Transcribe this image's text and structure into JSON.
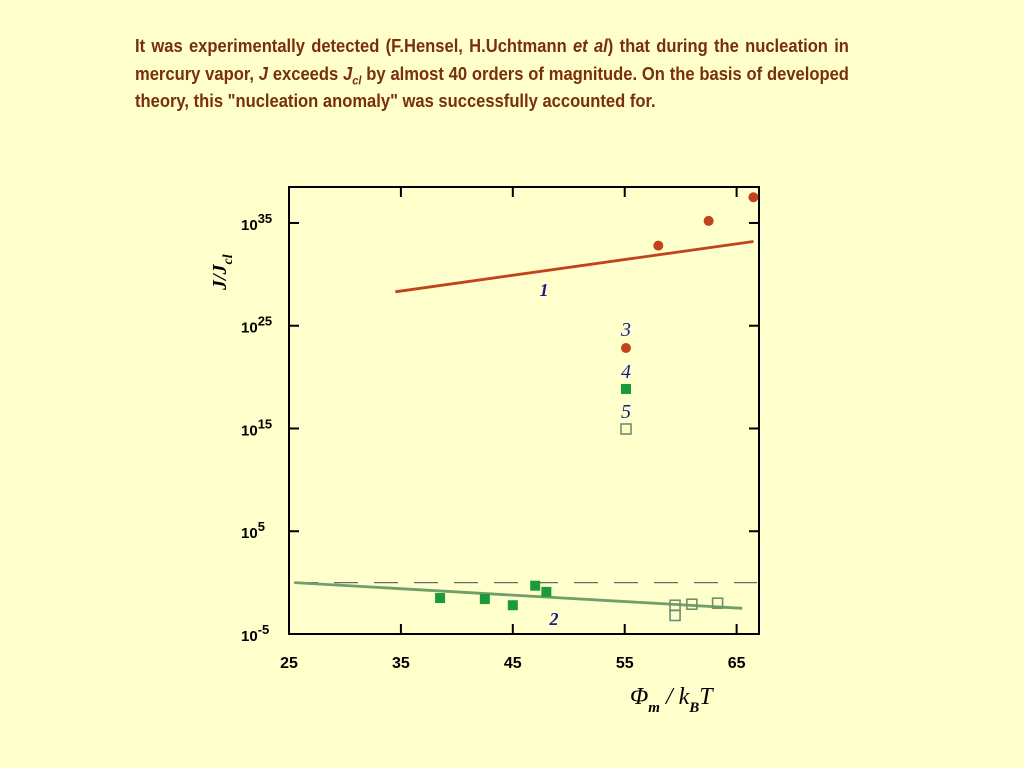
{
  "caption": {
    "part1": "It was experimentally detected (F.Hensel, H.Uchtmann ",
    "etal": "et al",
    "part2": ") that during the nucleation in mercury vapor, ",
    "J": "J",
    "part3": " exceeds ",
    "Jcl_J": "J",
    "Jcl_sub": "cl",
    "part4": " by almost 40 orders of magnitude. On the basis of developed theory, this \"nucleation anomaly\" was successfully accounted for."
  },
  "colors": {
    "background": "#ffffcc",
    "caption_text": "#7a2f0c",
    "line1": "#c0431c",
    "line2": "#6fa068",
    "dashed": "#6a6a6a",
    "mercury_points": "#c0431c",
    "green_filled": "#1a9a3a",
    "open_squares": "#6f8f6f",
    "label_blue": "#1a1a8c"
  },
  "chart_data": {
    "type": "scatter",
    "y_scale": "log",
    "xlabel": "Φ_m / k_B T",
    "ylabel": "J/J_cl",
    "xlim": [
      25,
      67
    ],
    "ylim_exp": [
      -5,
      38.5
    ],
    "x_ticks": [
      25,
      35,
      45,
      55,
      65
    ],
    "y_ticks": [
      {
        "exp": 35,
        "base": "10",
        "sup": "35"
      },
      {
        "exp": 25,
        "base": "10",
        "sup": "25"
      },
      {
        "exp": 15,
        "base": "10",
        "sup": "15"
      },
      {
        "exp": 5,
        "base": "10",
        "sup": "5"
      },
      {
        "exp": -5,
        "base": "10",
        "sup": "-5"
      }
    ],
    "grid": false,
    "lines": [
      {
        "label": "1",
        "x": [
          34.5,
          66.5
        ],
        "log10_y": [
          28.3,
          33.2
        ]
      },
      {
        "label": "2",
        "x": [
          25.5,
          65.5
        ],
        "log10_y": [
          0.0,
          -2.5
        ]
      }
    ],
    "reference_line": {
      "style": "dashed",
      "log10_y": 0.0
    },
    "series": [
      {
        "label": "3",
        "marker": "filled-circle",
        "points": [
          [
            58,
            32.8
          ],
          [
            62.5,
            35.2
          ],
          [
            66.5,
            37.5
          ]
        ]
      },
      {
        "label": "4",
        "marker": "filled-square",
        "points": [
          [
            38.5,
            -1.5
          ],
          [
            42.5,
            -1.6
          ],
          [
            45,
            -2.2
          ],
          [
            47,
            -0.3
          ],
          [
            48,
            -0.9
          ]
        ]
      },
      {
        "label": "5",
        "marker": "open-square",
        "points": [
          [
            59.5,
            -3.2
          ],
          [
            59.5,
            -2.2
          ],
          [
            61,
            -2.1
          ],
          [
            63.3,
            -2.0
          ]
        ]
      }
    ],
    "legend": [
      {
        "label": "3",
        "marker": "filled-circle"
      },
      {
        "label": "4",
        "marker": "filled-square"
      },
      {
        "label": "5",
        "marker": "open-square"
      }
    ],
    "legend_position": "center"
  }
}
